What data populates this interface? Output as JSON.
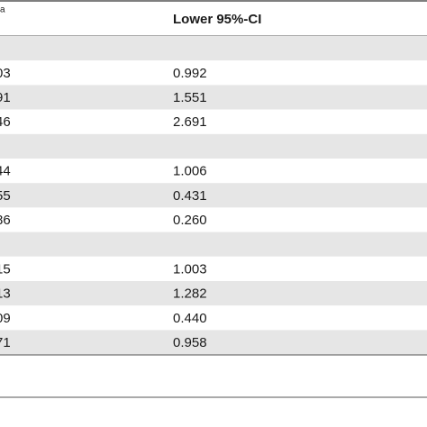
{
  "table": {
    "header": [
      "a",
      "Lower 95%-CI"
    ],
    "rows": [
      [],
      [
        "03",
        "0.992"
      ],
      [
        "91",
        "1.551"
      ],
      [
        "46",
        "2.691"
      ],
      [],
      [
        "44",
        "1.006"
      ],
      [
        "55",
        "0.431"
      ],
      [
        "86",
        "0.260"
      ],
      [],
      [
        "15",
        "1.003"
      ],
      [
        "13",
        "1.282"
      ],
      [
        "09",
        "0.440"
      ],
      [
        "71",
        "0.958"
      ]
    ]
  }
}
